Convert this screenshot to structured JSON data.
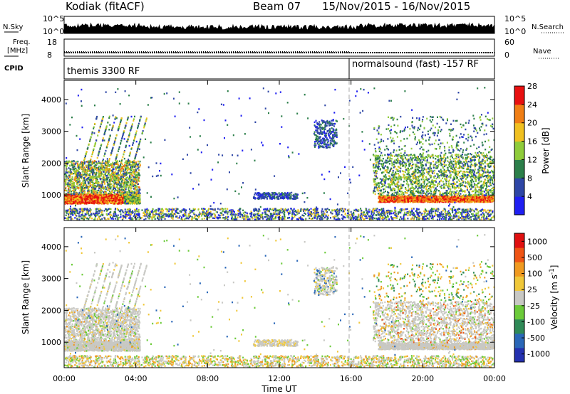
{
  "header": {
    "station": "Kodiak (fitACF)",
    "beam": "Beam 07",
    "dates": "15/Nov/2015 - 16/Nov/2015"
  },
  "top_strip": {
    "left_label": "N.Sky",
    "left_ticks": [
      "10^5",
      "10^0"
    ],
    "right_label": "N.Search",
    "right_ticks": [
      "10^5",
      "10^0"
    ]
  },
  "freq_strip": {
    "left_label_line1": "Freq.",
    "left_label_line2": "[MHz]",
    "left_ticks": [
      "18",
      "8"
    ],
    "right_label": "Nave",
    "right_ticks": [
      "60",
      "0"
    ]
  },
  "cpid_strip": {
    "label": "CPID",
    "segments": [
      "themis 3300 RF",
      "normalsound (fast) -157 RF"
    ]
  },
  "chart_data": [
    {
      "type": "heatmap",
      "panel": "power",
      "ylabel": "Slant Range [km]",
      "yticks": [
        "1000",
        "2000",
        "3000",
        "4000"
      ],
      "ylim": [
        200,
        4600
      ],
      "xlim_hours": [
        0,
        24
      ],
      "colorbar_label": "Power [dB]",
      "colorbar_ticks": [
        "4",
        "8",
        "12",
        "16",
        "20",
        "24",
        "28"
      ],
      "colorbar_colors": [
        "#1f1ff2",
        "#2e46a6",
        "#2c7f4a",
        "#8fcc3a",
        "#f0c020",
        "#f07e14",
        "#e81010"
      ],
      "cpid_change_hour": 16
    },
    {
      "type": "heatmap",
      "panel": "velocity",
      "ylabel": "Slant Range [km]",
      "yticks": [
        "1000",
        "2000",
        "3000",
        "4000"
      ],
      "ylim": [
        200,
        4600
      ],
      "xlim_hours": [
        0,
        24
      ],
      "colorbar_label": "Velocity [m s^-1]",
      "colorbar_ticks": [
        "1000",
        "500",
        "100",
        "25",
        "-25",
        "-100",
        "-500",
        "-1000"
      ],
      "colorbar_colors": [
        "#2431b0",
        "#2a67b8",
        "#2f8a57",
        "#6ccb3a",
        "#c8c8c4",
        "#f0c83a",
        "#f09a20",
        "#ef5414",
        "#e01010"
      ],
      "xticks": [
        "00:00",
        "04:00",
        "08:00",
        "12:00",
        "16:00",
        "20:00",
        "00:00"
      ],
      "xlabel": "Time UT"
    }
  ]
}
